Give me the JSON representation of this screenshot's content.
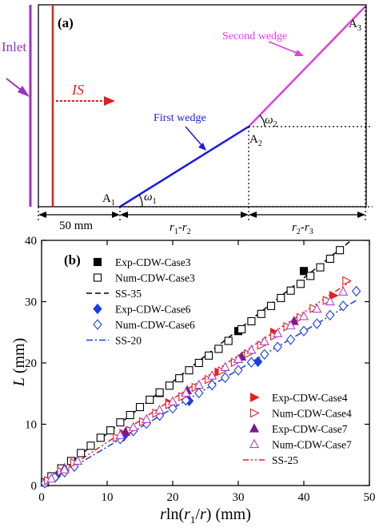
{
  "panel_a": {
    "label": "(a)",
    "inlet_label": "Inlet",
    "is_label": "IS",
    "first_wedge_label": "First wedge",
    "second_wedge_label": "Second wedge",
    "point_a1": "A",
    "point_a1_sub": "1",
    "point_a2": "A",
    "point_a2_sub": "2",
    "point_a3": "A",
    "point_a3_sub": "3",
    "omega1": "ω",
    "omega1_sub": "1",
    "omega2": "ω",
    "omega2_sub": "2",
    "dim_50": "50 mm",
    "dim_r1": "r",
    "dim_r1_sub": "1",
    "dim_r2": "r",
    "dim_r2_sub": "2",
    "dim_r3": "r",
    "dim_r3_sub": "3",
    "dim_dash": "-",
    "colors": {
      "inlet": "#9b30c8",
      "is": "#e02020",
      "first_wedge": "#1a1ae6",
      "second_wedge": "#e040e0",
      "structure": "#000000"
    }
  },
  "panel_b": {
    "label": "(b)",
    "ylabel_italic": "L",
    "ylabel_rest": " (mm)",
    "xlabel_r": "r",
    "xlabel_ln": "ln(",
    "xlabel_r1": "r",
    "xlabel_r1_sub": "1",
    "xlabel_slash": "/",
    "xlabel_r_den": "r",
    "xlabel_rest": ") (mm)"
  },
  "chart_data": {
    "type": "scatter",
    "x_label": "rln(r1/r) (mm)",
    "y_label": "L (mm)",
    "xlim": [
      0,
      50
    ],
    "ylim": [
      0,
      40
    ],
    "x_ticks": [
      0,
      10,
      20,
      30,
      40,
      50
    ],
    "y_ticks": [
      0,
      10,
      20,
      30,
      40
    ],
    "grid": false,
    "legend_upper": "top-left",
    "legend_lower": "bottom-right",
    "series": [
      {
        "name": "Exp-CDW-Case3",
        "marker": "filled-square",
        "color": "#000000",
        "x": [
          4.8,
          18,
          30,
          40
        ],
        "y": [
          3.9,
          15.1,
          25.2,
          35
        ]
      },
      {
        "name": "Num-CDW-Case3",
        "marker": "open-square",
        "color": "#000000",
        "x": [
          0.5,
          1.5,
          3,
          4.5,
          6,
          7.5,
          9,
          10.5,
          12,
          13.5,
          15,
          16.5,
          18,
          19.5,
          21,
          22.5,
          24,
          25.5,
          27,
          28.5,
          30.5,
          32,
          33.5,
          35,
          36.5,
          38,
          39.5,
          41,
          42.5,
          44,
          45.5
        ],
        "y": [
          0.5,
          1.5,
          2.8,
          4.0,
          5.3,
          6.5,
          7.8,
          9.0,
          10.3,
          11.5,
          12.8,
          14.0,
          15.2,
          16.3,
          17.5,
          18.8,
          20.0,
          21.2,
          22.3,
          23.6,
          25.5,
          26.8,
          28.0,
          29.3,
          30.6,
          31.8,
          32.9,
          34.2,
          35.6,
          37.0,
          38.4
        ]
      },
      {
        "name": "SS-35",
        "line_style": "dashed",
        "color": "#000000",
        "x": [
          0,
          47
        ],
        "y": [
          0,
          39.8
        ]
      },
      {
        "name": "Exp-CDW-Case6",
        "marker": "filled-diamond",
        "color": "#1a3ee8",
        "x": [
          2.3,
          12.5,
          22.5,
          33
        ],
        "y": [
          1.6,
          8.0,
          13.8,
          20.2
        ]
      },
      {
        "name": "Num-CDW-Case6",
        "marker": "open-diamond",
        "color": "#1a3ee8",
        "x": [
          0.5,
          2,
          3.5,
          5,
          12,
          14,
          16,
          18,
          20,
          22,
          24,
          26,
          28,
          30,
          32,
          34,
          36,
          38,
          40,
          42,
          44,
          46,
          48
        ],
        "y": [
          0.4,
          1.3,
          2.2,
          3.1,
          7.6,
          8.9,
          10.1,
          11.4,
          12.6,
          13.9,
          15.1,
          16.4,
          17.6,
          18.8,
          20.1,
          21.4,
          22.6,
          23.8,
          25.2,
          26.4,
          27.8,
          29.3,
          31.7
        ]
      },
      {
        "name": "SS-20",
        "line_style": "dash-dot",
        "color": "#1a3ee8",
        "x": [
          0,
          48
        ],
        "y": [
          0,
          30.2
        ]
      },
      {
        "name": "Exp-CDW-Case4",
        "marker": "filled-triangle-right",
        "color": "#e82020",
        "x": [
          3,
          12.5,
          19.5,
          27,
          35.5,
          44.5
        ],
        "y": [
          2.3,
          8.5,
          13.5,
          18.5,
          25.0,
          31.0
        ]
      },
      {
        "name": "Num-CDW-Case4",
        "marker": "open-triangle-right",
        "color": "#e82020",
        "x": [
          1,
          3,
          5,
          11.5,
          13.5,
          15.5,
          17.5,
          19.5,
          21.5,
          23.5,
          25.5,
          27.5,
          29.5,
          31.5,
          33.5,
          35.5,
          37.5,
          39.5,
          41.5,
          43.5,
          46.5
        ],
        "y": [
          0.8,
          2.3,
          3.7,
          7.8,
          9.0,
          10.4,
          11.8,
          13.2,
          14.5,
          16.0,
          17.3,
          18.7,
          20.1,
          21.5,
          22.9,
          24.4,
          25.9,
          27.4,
          28.9,
          30.2,
          33.4
        ]
      },
      {
        "name": "Exp-CDW-Case7",
        "marker": "filled-triangle-up",
        "color": "#7a1a8c",
        "x": [
          3.5,
          12.8,
          22.2,
          30.5,
          38.5
        ],
        "y": [
          2.8,
          8.7,
          15.5,
          21.0,
          26.8
        ]
      },
      {
        "name": "Num-CDW-Case7",
        "marker": "open-triangle-up",
        "color": "#b040c8",
        "x": [
          1.5,
          3.5,
          5.5,
          12,
          14,
          16,
          18,
          20,
          22,
          24,
          26,
          28,
          30,
          32,
          34,
          36,
          38,
          40,
          42,
          44,
          46
        ],
        "y": [
          1.1,
          2.6,
          4.0,
          8.2,
          9.5,
          10.8,
          12.3,
          13.7,
          15.1,
          16.4,
          17.9,
          19.3,
          20.6,
          22.1,
          23.5,
          24.8,
          26.1,
          27.6,
          28.8,
          30.0,
          31.6
        ]
      },
      {
        "name": "SS-25",
        "line_style": "dash-dot-dot",
        "color": "#e82020",
        "x": [
          0,
          47
        ],
        "y": [
          0,
          33.2
        ]
      }
    ]
  }
}
